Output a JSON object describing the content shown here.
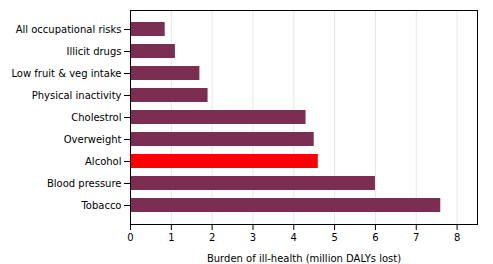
{
  "chart_data": {
    "type": "bar",
    "orientation": "horizontal",
    "categories": [
      "Tobacco",
      "Blood pressure",
      "Alcohol",
      "Overweight",
      "Cholestrol",
      "Physical inactivity",
      "Low fruit & veg intake",
      "Illicit drugs",
      "All occupational risks"
    ],
    "values": [
      7.6,
      6.0,
      4.6,
      4.5,
      4.3,
      1.9,
      1.7,
      1.1,
      0.85
    ],
    "colors": [
      "#7b2d52",
      "#7b2d52",
      "#ff0000",
      "#7b2d52",
      "#7b2d52",
      "#7b2d52",
      "#7b2d52",
      "#7b2d52",
      "#7b2d52"
    ],
    "xlabel": "Burden of ill-health (million DALYs lost)",
    "xlim": [
      0,
      8.5
    ],
    "xticks": [
      0,
      1,
      2,
      3,
      4,
      5,
      6,
      7,
      8
    ],
    "grid": true
  }
}
